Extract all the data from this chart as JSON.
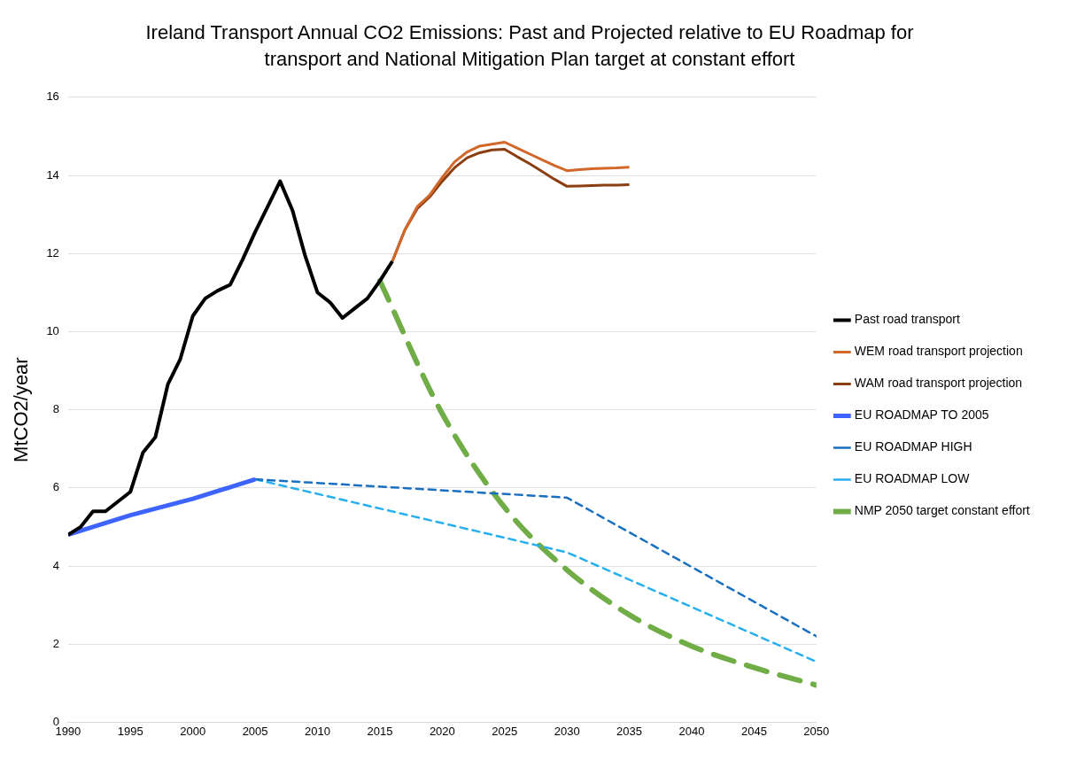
{
  "chart_data": {
    "type": "line",
    "title": "Ireland Transport Annual CO2 Emissions: Past and Projected relative to EU Roadmap for transport and National Mitigation Plan target at constant effort",
    "ylabel": "MtCO2/year",
    "xlim": [
      1990,
      2050
    ],
    "xticks": [
      1990,
      1995,
      2000,
      2005,
      2010,
      2015,
      2020,
      2025,
      2030,
      2035,
      2040,
      2045,
      2050
    ],
    "ylim": [
      0,
      16
    ],
    "yticks": [
      0,
      2,
      4,
      6,
      8,
      10,
      12,
      14,
      16
    ],
    "grid": "y",
    "legend": "right",
    "marker": "none",
    "series": [
      {
        "name": "Past road transport",
        "color": "#000000",
        "line_style": "solid",
        "x": [
          1990,
          1991,
          1992,
          1993,
          1994,
          1995,
          1996,
          1997,
          1998,
          1999,
          2000,
          2001,
          2002,
          2003,
          2004,
          2005,
          2006,
          2007,
          2008,
          2009,
          2010,
          2011,
          2012,
          2013,
          2014,
          2015,
          2016
        ],
        "values": [
          4.8,
          5.0,
          5.4,
          5.4,
          5.65,
          5.9,
          6.9,
          7.3,
          8.65,
          9.3,
          10.4,
          10.85,
          11.05,
          11.2,
          11.85,
          12.55,
          13.2,
          13.85,
          13.1,
          11.95,
          11.0,
          10.75,
          10.35,
          10.6,
          10.85,
          11.3,
          11.8
        ]
      },
      {
        "name": "WEM road transport projection",
        "color": "#d2672a",
        "line_style": "solid",
        "x": [
          2016,
          2017,
          2018,
          2019,
          2020,
          2021,
          2022,
          2023,
          2024,
          2025,
          2026,
          2027,
          2028,
          2029,
          2030,
          2031,
          2032,
          2033,
          2034,
          2035
        ],
        "values": [
          11.8,
          12.6,
          13.2,
          13.5,
          13.95,
          14.35,
          14.6,
          14.75,
          14.8,
          14.85,
          14.7,
          14.55,
          14.4,
          14.25,
          14.12,
          14.15,
          14.17,
          14.18,
          14.19,
          14.21
        ]
      },
      {
        "name": "WAM road transport projection",
        "color": "#8b3e12",
        "line_style": "solid",
        "x": [
          2016,
          2017,
          2018,
          2019,
          2020,
          2021,
          2022,
          2023,
          2024,
          2025,
          2026,
          2027,
          2028,
          2029,
          2030,
          2031,
          2032,
          2033,
          2034,
          2035
        ],
        "values": [
          11.8,
          12.6,
          13.15,
          13.45,
          13.85,
          14.2,
          14.45,
          14.58,
          14.65,
          14.67,
          14.48,
          14.3,
          14.1,
          13.9,
          13.72,
          13.73,
          13.74,
          13.75,
          13.75,
          13.76
        ]
      },
      {
        "name": "EU ROADMAP TO 2005",
        "color": "#3e64ff",
        "line_style": "solid",
        "x": [
          1990,
          1995,
          2000,
          2005
        ],
        "values": [
          4.8,
          5.3,
          5.72,
          6.22
        ]
      },
      {
        "name": "EU ROADMAP HIGH",
        "color": "#1a70c0",
        "line_style": "dashed",
        "x": [
          2005,
          2030,
          2050
        ],
        "values": [
          6.22,
          5.75,
          2.2
        ]
      },
      {
        "name": "EU ROADMAP LOW",
        "color": "#27b0ee",
        "line_style": "dashed",
        "x": [
          2005,
          2030,
          2050
        ],
        "values": [
          6.22,
          4.35,
          1.55
        ]
      },
      {
        "name": "NMP 2050 target constant effort",
        "color": "#70ad47",
        "line_style": "dashed",
        "x": [
          2015,
          2020,
          2025,
          2030,
          2035,
          2040,
          2045,
          2050
        ],
        "values": [
          11.3,
          7.9,
          5.5,
          3.9,
          2.75,
          1.95,
          1.4,
          0.95
        ]
      }
    ]
  }
}
